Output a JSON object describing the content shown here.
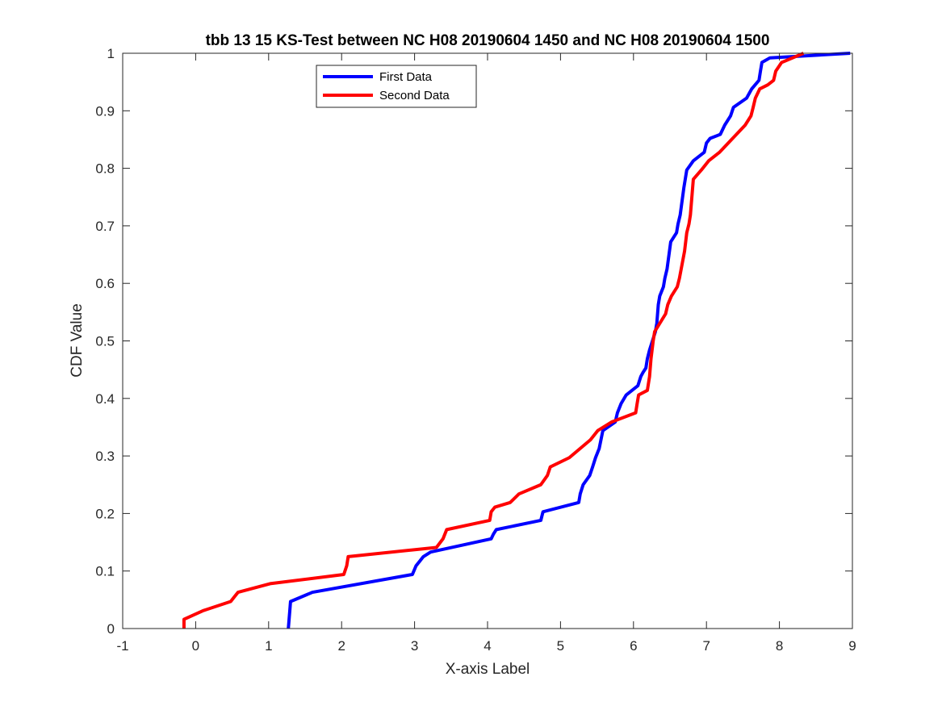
{
  "chart_data": {
    "type": "line",
    "title": "tbb 13 15 KS-Test between NC H08 20190604 1450 and NC H08 20190604 1500",
    "xlabel": "X-axis Label",
    "ylabel": "CDF Value",
    "xlim": [
      -1,
      9
    ],
    "ylim": [
      0,
      1
    ],
    "xticks": [
      -1,
      0,
      1,
      2,
      3,
      4,
      5,
      6,
      7,
      8,
      9
    ],
    "yticks": [
      0,
      0.1,
      0.2,
      0.3,
      0.4,
      0.5,
      0.6,
      0.7,
      0.8,
      0.9,
      1
    ],
    "xtick_labels": [
      "-1",
      "0",
      "1",
      "2",
      "3",
      "4",
      "5",
      "6",
      "7",
      "8",
      "9"
    ],
    "ytick_labels": [
      "0",
      "0.1",
      "0.2",
      "0.3",
      "0.4",
      "0.5",
      "0.6",
      "0.7",
      "0.8",
      "0.9",
      "1"
    ],
    "grid": false,
    "legend_position": "top-left",
    "series": [
      {
        "name": "First Data",
        "color": "#0000ff",
        "x": [
          1.27,
          1.29,
          1.3,
          1.6,
          2.97,
          3.02,
          3.07,
          3.12,
          3.22,
          4.05,
          4.08,
          4.12,
          4.73,
          4.76,
          5.25,
          5.27,
          5.31,
          5.4,
          5.44,
          5.48,
          5.53,
          5.58,
          5.75,
          5.78,
          5.83,
          5.9,
          6.06,
          6.1,
          6.13,
          6.17,
          6.19,
          6.22,
          6.26,
          6.3,
          6.32,
          6.34,
          6.36,
          6.41,
          6.43,
          6.46,
          6.51,
          6.59,
          6.61,
          6.64,
          6.69,
          6.73,
          6.82,
          6.97,
          7.0,
          7.05,
          7.19,
          7.25,
          7.33,
          7.37,
          7.55,
          7.62,
          7.72,
          7.74,
          7.76,
          7.87,
          8.97
        ],
        "y": [
          0.0,
          0.031,
          0.047,
          0.063,
          0.094,
          0.109,
          0.117,
          0.125,
          0.133,
          0.156,
          0.164,
          0.172,
          0.188,
          0.203,
          0.219,
          0.234,
          0.25,
          0.266,
          0.281,
          0.297,
          0.313,
          0.344,
          0.359,
          0.375,
          0.391,
          0.406,
          0.422,
          0.438,
          0.445,
          0.453,
          0.469,
          0.484,
          0.5,
          0.516,
          0.531,
          0.563,
          0.578,
          0.594,
          0.609,
          0.625,
          0.672,
          0.688,
          0.703,
          0.719,
          0.766,
          0.797,
          0.813,
          0.828,
          0.844,
          0.852,
          0.859,
          0.875,
          0.891,
          0.906,
          0.922,
          0.938,
          0.953,
          0.969,
          0.984,
          0.992,
          1.0
        ]
      },
      {
        "name": "Second Data",
        "color": "#ff0000",
        "x": [
          -0.16,
          -0.16,
          0.1,
          0.48,
          0.53,
          0.58,
          1.02,
          2.03,
          2.07,
          2.09,
          3.3,
          3.39,
          3.44,
          4.03,
          4.05,
          4.1,
          4.31,
          4.43,
          4.73,
          4.82,
          4.86,
          5.12,
          5.41,
          5.51,
          5.7,
          6.03,
          6.05,
          6.07,
          6.19,
          6.22,
          6.24,
          6.27,
          6.29,
          6.44,
          6.47,
          6.52,
          6.6,
          6.63,
          6.7,
          6.73,
          6.76,
          6.78,
          6.82,
          6.93,
          7.03,
          7.18,
          7.53,
          7.61,
          7.64,
          7.67,
          7.73,
          7.84,
          7.92,
          7.95,
          8.03,
          8.33
        ],
        "y": [
          0.0,
          0.016,
          0.031,
          0.047,
          0.055,
          0.063,
          0.078,
          0.094,
          0.109,
          0.125,
          0.141,
          0.156,
          0.172,
          0.188,
          0.203,
          0.211,
          0.219,
          0.234,
          0.25,
          0.266,
          0.281,
          0.297,
          0.328,
          0.344,
          0.359,
          0.375,
          0.391,
          0.406,
          0.414,
          0.438,
          0.469,
          0.5,
          0.516,
          0.547,
          0.563,
          0.578,
          0.594,
          0.609,
          0.656,
          0.688,
          0.703,
          0.719,
          0.781,
          0.797,
          0.813,
          0.828,
          0.875,
          0.891,
          0.906,
          0.922,
          0.938,
          0.945,
          0.953,
          0.969,
          0.984,
          1.0
        ]
      }
    ]
  }
}
